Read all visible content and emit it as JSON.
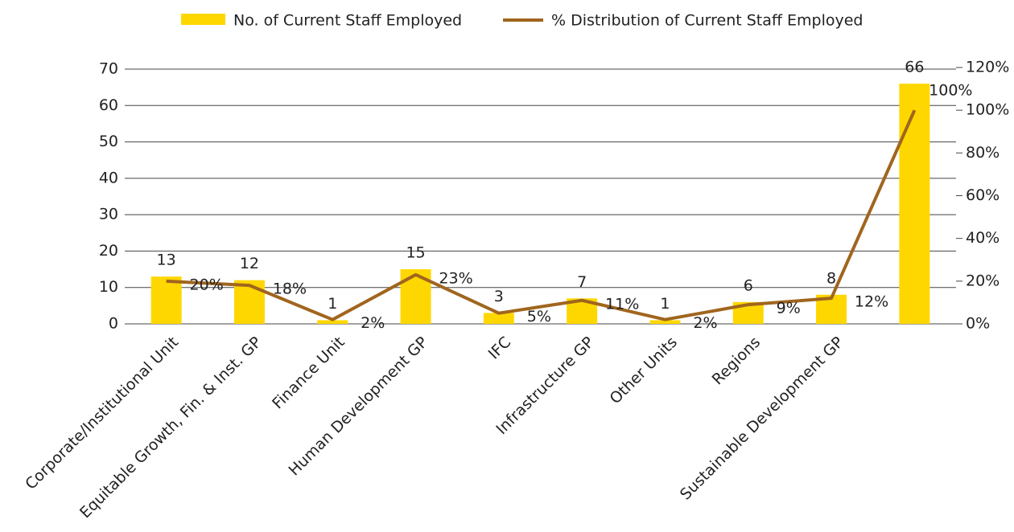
{
  "chart_data": {
    "type": "bar-line",
    "categories": [
      "Corporate/Institutional Unit",
      "Equitable Growth, Fin. & Inst. GP",
      "Finance Unit",
      "Human Development GP",
      "IFC",
      "Infrastructure GP",
      "Other Units",
      "Regions",
      "Sustainable Development GP",
      null
    ],
    "series": [
      {
        "name": "No. of Current Staff Employed",
        "color": "#ffd700",
        "type": "bar",
        "values": [
          13,
          12,
          1,
          15,
          3,
          7,
          1,
          6,
          8,
          66
        ]
      },
      {
        "name": "% Distribution of Current Staff Employed",
        "color": "#a0651e",
        "type": "line",
        "axis": "y2",
        "values": [
          20,
          18,
          2,
          23,
          5,
          11,
          2,
          9,
          12,
          100
        ],
        "value_labels": [
          "20%",
          "18%",
          "2%",
          "23%",
          "5%",
          "11%",
          "2%",
          "9%",
          "12%",
          "100%"
        ]
      }
    ],
    "ylim": [
      0,
      70
    ],
    "yticks": [
      0,
      10,
      20,
      30,
      40,
      50,
      60,
      70
    ],
    "y2lim": [
      0,
      120
    ],
    "y2ticks": [
      {
        "value": 0,
        "label": "0%"
      },
      {
        "value": 20,
        "label": "20%"
      },
      {
        "value": 40,
        "label": "40%"
      },
      {
        "value": 60,
        "label": "60%"
      },
      {
        "value": 80,
        "label": "80%"
      },
      {
        "value": 100,
        "label": "100%"
      },
      {
        "value": 120,
        "label": "120%"
      }
    ],
    "grid": true,
    "legend": "top"
  }
}
